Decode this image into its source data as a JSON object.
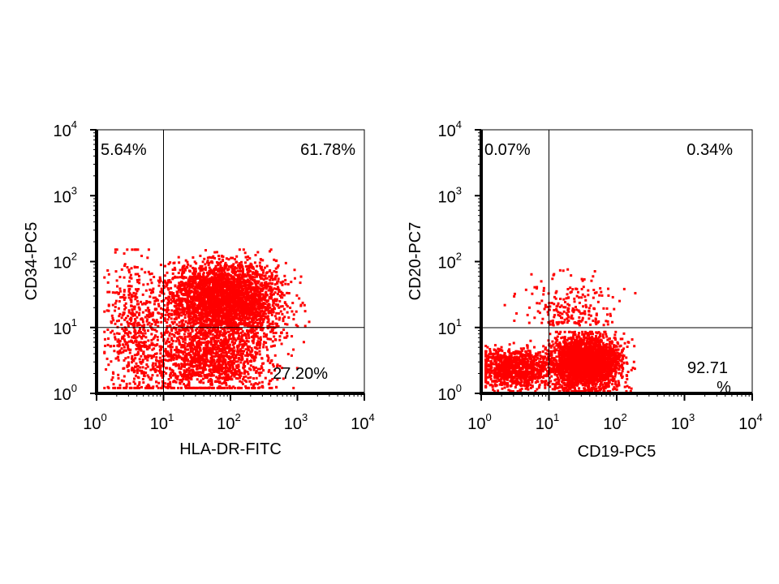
{
  "colors": {
    "events": "#ff0000",
    "axes": "#000000",
    "background": "#ffffff"
  },
  "chart_data": [
    {
      "type": "scatter",
      "scale": "log",
      "xlabel": "HLA-DR-FITC",
      "ylabel": "CD34-PC5",
      "xlim": [
        1,
        10000
      ],
      "ylim": [
        1,
        10000
      ],
      "gate": {
        "x": 10,
        "y": 10
      },
      "quadrants": {
        "upper_left": "5.64%",
        "upper_right": "61.78%",
        "lower_left": "",
        "lower_right": "27.20%"
      },
      "ticks": [
        "10^0",
        "10^1",
        "10^2",
        "10^3",
        "10^4"
      ]
    },
    {
      "type": "scatter",
      "scale": "log",
      "xlabel": "CD19-PC5",
      "ylabel": "CD20-PC7",
      "xlim": [
        1,
        10000
      ],
      "ylim": [
        1,
        10000
      ],
      "gate": {
        "x": 10,
        "y": 10
      },
      "quadrants": {
        "upper_left": "0.07%",
        "upper_right": "0.34%",
        "lower_left": "",
        "lower_right": "92.71 %"
      },
      "ticks": [
        "10^0",
        "10^1",
        "10^2",
        "10^3",
        "10^4"
      ]
    }
  ]
}
